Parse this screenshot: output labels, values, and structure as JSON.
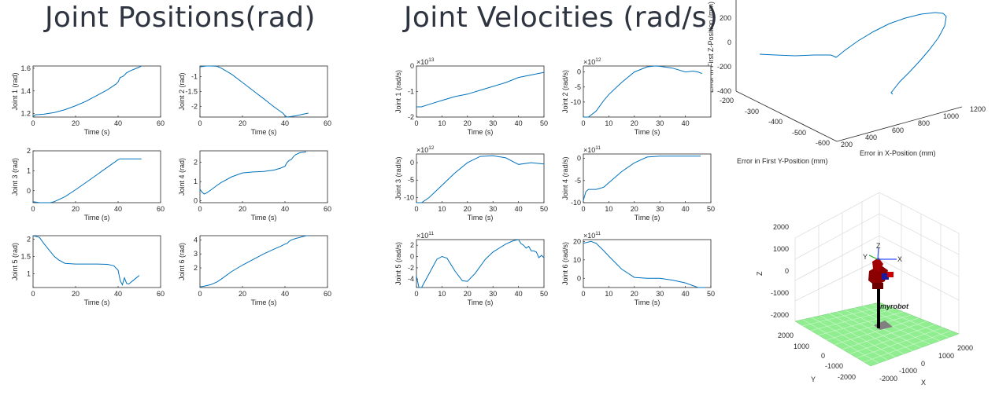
{
  "titles": {
    "positions": "Joint Positions(rad)",
    "velocities": "Joint Velocities (rad/s)"
  },
  "colors": {
    "line": "#0072bd",
    "floor_green": "#90ee90",
    "robot_red": "#8b0000",
    "axis_text": "#262626"
  },
  "chart_data": [
    {
      "type": "line",
      "xlabel": "Time (s)",
      "ylabel": "Joint 1 (rad)",
      "xlim": [
        0,
        60
      ],
      "ylim": [
        1.17,
        1.62
      ],
      "xticks": [
        0,
        20,
        40,
        60
      ],
      "yticks": [
        1.2,
        1.4,
        1.6
      ],
      "x": [
        0,
        1,
        5,
        10,
        15,
        20,
        25,
        30,
        35,
        39,
        40,
        41,
        42,
        43,
        44,
        46,
        48,
        50,
        51
      ],
      "y": [
        1.17,
        1.19,
        1.195,
        1.21,
        1.235,
        1.27,
        1.31,
        1.36,
        1.41,
        1.46,
        1.48,
        1.52,
        1.525,
        1.54,
        1.56,
        1.58,
        1.595,
        1.61,
        1.62
      ]
    },
    {
      "type": "line",
      "xlabel": "Time (s)",
      "ylabel": "Joint 2 (rad)",
      "xlim": [
        0,
        60
      ],
      "ylim": [
        -2.35,
        -0.65
      ],
      "xticks": [
        0,
        20,
        40,
        60
      ],
      "yticks": [
        -1,
        -1.5,
        -2
      ],
      "x": [
        0,
        3,
        5,
        8,
        10,
        15,
        20,
        25,
        30,
        35,
        39,
        40,
        41,
        43,
        45,
        48,
        51
      ],
      "y": [
        -0.68,
        -0.65,
        -0.64,
        -0.66,
        -0.72,
        -0.93,
        -1.2,
        -1.47,
        -1.74,
        -2.02,
        -2.22,
        -2.3,
        -2.35,
        -2.33,
        -2.31,
        -2.26,
        -2.22
      ]
    },
    {
      "type": "line",
      "xlabel": "Time (s)",
      "ylabel": "Joint 3 (rad)",
      "xlim": [
        0,
        60
      ],
      "ylim": [
        -0.6,
        2
      ],
      "xticks": [
        0,
        20,
        40,
        60
      ],
      "yticks": [
        0,
        1,
        2
      ],
      "x": [
        0,
        3,
        5,
        8,
        10,
        15,
        20,
        25,
        30,
        35,
        39,
        40,
        41,
        45,
        48,
        51
      ],
      "y": [
        -0.55,
        -0.62,
        -0.62,
        -0.6,
        -0.55,
        -0.3,
        0.05,
        0.42,
        0.8,
        1.18,
        1.48,
        1.56,
        1.6,
        1.6,
        1.6,
        1.6
      ]
    },
    {
      "type": "line",
      "xlabel": "Time (s)",
      "ylabel": "Joint 4 (rad)",
      "xlim": [
        0,
        60
      ],
      "ylim": [
        -0.1,
        2.6
      ],
      "xticks": [
        0,
        20,
        40,
        60
      ],
      "yticks": [
        0,
        1,
        2
      ],
      "x": [
        0,
        1,
        2,
        3,
        5,
        8,
        10,
        15,
        20,
        25,
        30,
        35,
        38,
        40,
        41,
        42,
        43,
        44,
        45,
        47,
        50
      ],
      "y": [
        0.6,
        0.45,
        0.35,
        0.4,
        0.55,
        0.8,
        0.95,
        1.25,
        1.45,
        1.5,
        1.53,
        1.6,
        1.7,
        1.8,
        2.0,
        2.1,
        2.15,
        2.3,
        2.4,
        2.5,
        2.55
      ]
    },
    {
      "type": "line",
      "xlabel": "Time (s)",
      "ylabel": "Joint 5 (rad)",
      "xlim": [
        0,
        60
      ],
      "ylim": [
        0.6,
        2.1
      ],
      "xticks": [
        0,
        20,
        40,
        60
      ],
      "yticks": [
        1,
        1.5,
        2
      ],
      "x": [
        0,
        3,
        5,
        8,
        10,
        12,
        15,
        20,
        25,
        30,
        35,
        38,
        40,
        41,
        42,
        43,
        44,
        45,
        47,
        50
      ],
      "y": [
        2.1,
        2.05,
        1.88,
        1.65,
        1.5,
        1.4,
        1.3,
        1.28,
        1.28,
        1.28,
        1.27,
        1.23,
        1.1,
        0.8,
        0.68,
        0.88,
        0.72,
        0.7,
        0.8,
        0.95
      ]
    },
    {
      "type": "line",
      "xlabel": "Time (s)",
      "ylabel": "Joint 6 (rad)",
      "xlim": [
        0,
        60
      ],
      "ylim": [
        0.6,
        4.3
      ],
      "xticks": [
        0,
        20,
        40,
        60
      ],
      "yticks": [
        2,
        3,
        4
      ],
      "x": [
        0,
        2,
        5,
        8,
        10,
        15,
        20,
        25,
        30,
        35,
        38,
        40,
        41,
        42,
        43,
        45,
        48,
        50,
        51
      ],
      "y": [
        0.65,
        0.7,
        0.8,
        1.0,
        1.2,
        1.75,
        2.2,
        2.6,
        3.0,
        3.35,
        3.55,
        3.7,
        3.75,
        3.9,
        4.0,
        4.1,
        4.22,
        4.3,
        4.3
      ]
    },
    {
      "type": "line",
      "xlabel": "Time (s)",
      "ylabel": "Joint 1 (rad/s)",
      "exponent": "13",
      "xlim": [
        0,
        50
      ],
      "ylim": [
        -2,
        0
      ],
      "xticks": [
        0,
        10,
        20,
        30,
        40,
        50
      ],
      "yticks": [
        0,
        -1,
        -2
      ],
      "x": [
        0,
        2,
        5,
        10,
        15,
        20,
        25,
        30,
        35,
        40,
        45,
        50
      ],
      "y": [
        -1.6,
        -1.6,
        -1.5,
        -1.35,
        -1.2,
        -1.1,
        -0.95,
        -0.8,
        -0.65,
        -0.45,
        -0.35,
        -0.25
      ]
    },
    {
      "type": "line",
      "xlabel": "Time (s)",
      "ylabel": "Joint 2 (rad/s)",
      "exponent": "12",
      "xlim": [
        0,
        50
      ],
      "ylim": [
        -15,
        2
      ],
      "xticks": [
        0,
        10,
        20,
        30,
        40
      ],
      "yticks": [
        0,
        -5,
        -10
      ],
      "x": [
        0,
        2,
        5,
        8,
        10,
        15,
        20,
        25,
        28,
        30,
        35,
        40,
        43,
        45,
        46.5
      ],
      "y": [
        -15,
        -15,
        -13,
        -9.5,
        -7.5,
        -3.5,
        0,
        1.7,
        2,
        1.9,
        1.3,
        0,
        0.3,
        0,
        -0.5
      ]
    },
    {
      "type": "line",
      "xlabel": "Time (s)",
      "ylabel": "Joint 3 (rad/s)",
      "exponent": "12",
      "xlim": [
        0,
        50
      ],
      "ylim": [
        -11.5,
        2.5
      ],
      "xticks": [
        0,
        10,
        20,
        30,
        40,
        50
      ],
      "yticks": [
        0,
        -5,
        -10
      ],
      "x": [
        0,
        2,
        5,
        10,
        15,
        20,
        25,
        30,
        35,
        40,
        45,
        50
      ],
      "y": [
        -11.5,
        -11.5,
        -10,
        -6.5,
        -3,
        0,
        1.8,
        2,
        1.4,
        -0.5,
        0,
        -0.4
      ]
    },
    {
      "type": "line",
      "xlabel": "Time (s)",
      "ylabel": "Joint 4 (rad/s)",
      "exponent": "11",
      "xlim": [
        0,
        50
      ],
      "ylim": [
        -10,
        1
      ],
      "xticks": [
        0,
        10,
        20,
        30,
        40,
        50
      ],
      "yticks": [
        0,
        -5,
        -10
      ],
      "x": [
        0,
        1,
        2,
        5,
        8,
        10,
        15,
        20,
        25,
        30,
        35,
        40,
        45,
        46
      ],
      "y": [
        -9.5,
        -7.5,
        -7,
        -7,
        -6.5,
        -5.5,
        -3,
        -1,
        0.3,
        0.5,
        0.5,
        0.5,
        0.5,
        0.5
      ]
    },
    {
      "type": "line",
      "xlabel": "Time (s)",
      "ylabel": "Joint 5 (rad/s)",
      "exponent": "11",
      "xlim": [
        0,
        50
      ],
      "ylim": [
        -5.5,
        3
      ],
      "xticks": [
        0,
        10,
        20,
        30,
        40,
        50
      ],
      "yticks": [
        2,
        0,
        -2,
        -4
      ],
      "x": [
        0,
        1,
        2,
        5,
        8,
        10,
        12,
        15,
        18,
        20,
        23,
        27,
        30,
        35,
        38,
        40,
        41,
        42,
        43,
        44,
        45,
        46,
        47,
        48,
        49,
        50
      ],
      "y": [
        -3.5,
        -5.5,
        -5.5,
        -3,
        -0.5,
        0,
        -0.3,
        -2.5,
        -4.3,
        -4.4,
        -3,
        -0.5,
        0.8,
        2.2,
        2.8,
        3,
        2.3,
        2.0,
        1.5,
        1.8,
        1.0,
        1.0,
        0.8,
        -0.2,
        0.2,
        -0.2
      ]
    },
    {
      "type": "line",
      "xlabel": "Time (s)",
      "ylabel": "Joint 6 (rad/s)",
      "exponent": "11",
      "xlim": [
        0,
        50
      ],
      "ylim": [
        -5,
        21
      ],
      "xticks": [
        0,
        10,
        20,
        30,
        40,
        50
      ],
      "yticks": [
        20,
        10,
        0
      ],
      "x": [
        0,
        3,
        5,
        8,
        10,
        15,
        20,
        25,
        30,
        35,
        40,
        45,
        48
      ],
      "y": [
        19,
        20,
        19,
        15,
        12,
        5,
        0.5,
        0,
        0,
        -1,
        -2.5,
        -5,
        -5
      ]
    }
  ],
  "trajectory_3d": {
    "zlabel": "Error in First Z-Position (mm)",
    "xlabel": "Error in X-Position (mm)",
    "ylabel": "Error in First Y-Position (mm)",
    "z_ticks": [
      "200",
      "0",
      "-200",
      "-400"
    ],
    "x_ticks": [
      "200",
      "400",
      "600",
      "800",
      "1000",
      "1200"
    ],
    "y_ticks": [
      "-200",
      "-300",
      "-400",
      "-500",
      "-600"
    ]
  },
  "robot_view": {
    "robot_label": "myrobot",
    "z_axis_label": "Z",
    "x_axis_label": "X",
    "y_axis_label": "Y",
    "z_ticks": [
      "2000",
      "1000",
      "0",
      "-1000",
      "-2000"
    ],
    "x_ticks": [
      "-2000",
      "-1000",
      "0",
      "1000",
      "2000"
    ],
    "y_ticks": [
      "2000",
      "1000",
      "0",
      "-1000",
      "-2000"
    ],
    "frame_x": "X",
    "frame_y": "Y",
    "frame_z": "Z"
  }
}
